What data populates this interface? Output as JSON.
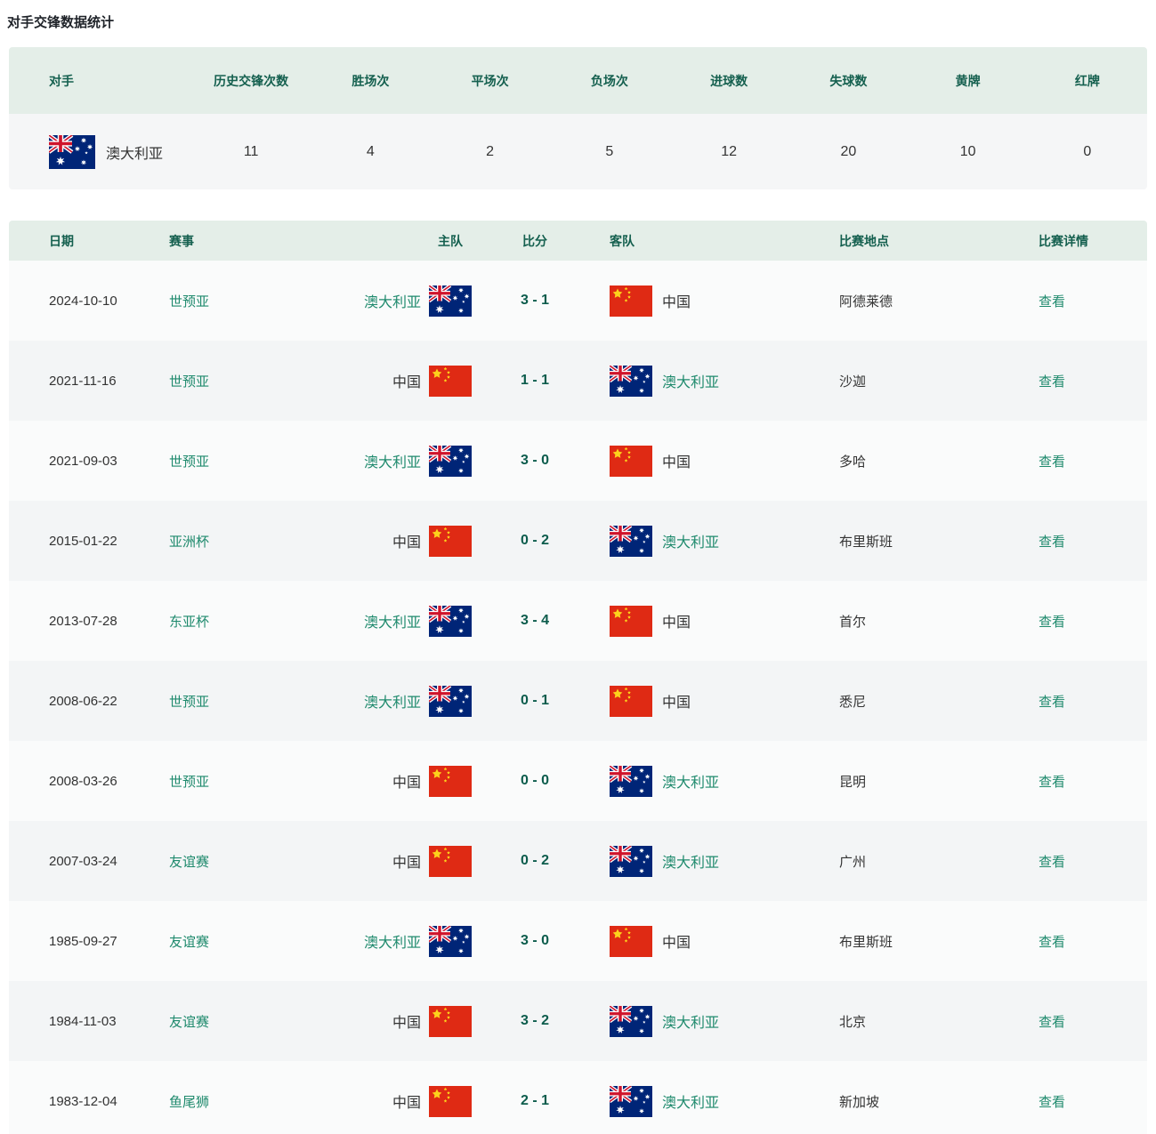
{
  "page": {
    "title": "对手交锋数据统计"
  },
  "summary": {
    "headers": [
      "对手",
      "历史交锋次数",
      "胜场次",
      "平场次",
      "负场次",
      "进球数",
      "失球数",
      "黄牌",
      "红牌"
    ],
    "row": {
      "team": "澳大利亚",
      "flag": "au",
      "values": [
        "11",
        "4",
        "2",
        "5",
        "12",
        "20",
        "10",
        "0"
      ]
    }
  },
  "matches": {
    "headers": [
      "日期",
      "赛事",
      "主队",
      "比分",
      "客队",
      "比赛地点",
      "比赛详情"
    ],
    "detail_label": "查看",
    "rows": [
      {
        "date": "2024-10-10",
        "competition": "世预亚",
        "home": "澳大利亚",
        "home_flag": "au",
        "score": "3 - 1",
        "away": "中国",
        "away_flag": "cn",
        "venue": "阿德莱德"
      },
      {
        "date": "2021-11-16",
        "competition": "世预亚",
        "home": "中国",
        "home_flag": "cn",
        "score": "1 - 1",
        "away": "澳大利亚",
        "away_flag": "au",
        "venue": "沙迦"
      },
      {
        "date": "2021-09-03",
        "competition": "世预亚",
        "home": "澳大利亚",
        "home_flag": "au",
        "score": "3 - 0",
        "away": "中国",
        "away_flag": "cn",
        "venue": "多哈"
      },
      {
        "date": "2015-01-22",
        "competition": "亚洲杯",
        "home": "中国",
        "home_flag": "cn",
        "score": "0 - 2",
        "away": "澳大利亚",
        "away_flag": "au",
        "venue": "布里斯班"
      },
      {
        "date": "2013-07-28",
        "competition": "东亚杯",
        "home": "澳大利亚",
        "home_flag": "au",
        "score": "3 - 4",
        "away": "中国",
        "away_flag": "cn",
        "venue": "首尔"
      },
      {
        "date": "2008-06-22",
        "competition": "世预亚",
        "home": "澳大利亚",
        "home_flag": "au",
        "score": "0 - 1",
        "away": "中国",
        "away_flag": "cn",
        "venue": "悉尼"
      },
      {
        "date": "2008-03-26",
        "competition": "世预亚",
        "home": "中国",
        "home_flag": "cn",
        "score": "0 - 0",
        "away": "澳大利亚",
        "away_flag": "au",
        "venue": "昆明"
      },
      {
        "date": "2007-03-24",
        "competition": "友谊赛",
        "home": "中国",
        "home_flag": "cn",
        "score": "0 - 2",
        "away": "澳大利亚",
        "away_flag": "au",
        "venue": "广州"
      },
      {
        "date": "1985-09-27",
        "competition": "友谊赛",
        "home": "澳大利亚",
        "home_flag": "au",
        "score": "3 - 0",
        "away": "中国",
        "away_flag": "cn",
        "venue": "布里斯班"
      },
      {
        "date": "1984-11-03",
        "competition": "友谊赛",
        "home": "中国",
        "home_flag": "cn",
        "score": "3 - 2",
        "away": "澳大利亚",
        "away_flag": "au",
        "venue": "北京"
      },
      {
        "date": "1983-12-04",
        "competition": "鱼尾狮",
        "home": "中国",
        "home_flag": "cn",
        "score": "2 - 1",
        "away": "澳大利亚",
        "away_flag": "au",
        "venue": "新加坡"
      }
    ]
  },
  "colors": {
    "header_bg": "#e4eee8",
    "header_text": "#15604f",
    "link_green": "#1f8a6d",
    "score_green": "#0c5c4c",
    "flag_au_blue": "#002577",
    "flag_cn_red": "#df2a14",
    "flag_cn_yellow": "#fcd21c"
  }
}
